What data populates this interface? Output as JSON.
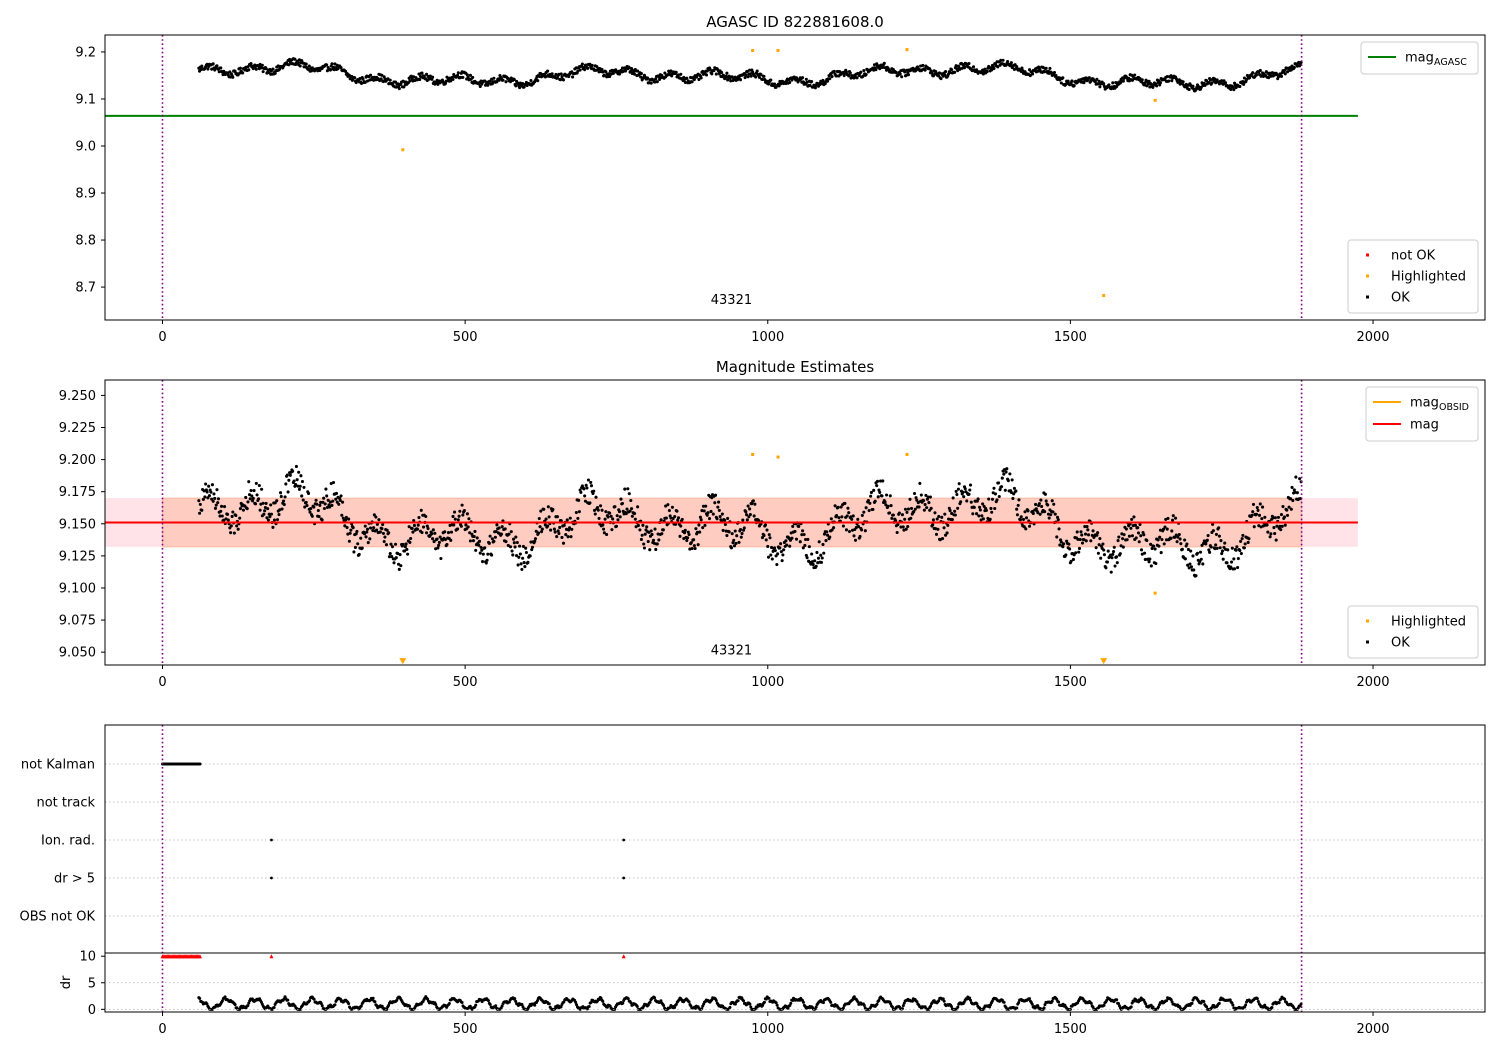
{
  "chart_data": [
    {
      "type": "scatter",
      "title": "AGASC ID 822881608.0",
      "xlim": [
        -95,
        2185
      ],
      "ylim": [
        8.63,
        9.236
      ],
      "xticks": [
        0,
        500,
        1000,
        1500,
        2000
      ],
      "yticks": [
        8.7,
        8.8,
        8.9,
        9.0,
        9.1,
        9.2
      ],
      "ytick_decimals": 1,
      "vlines": [
        0,
        1882
      ],
      "hlines": [
        {
          "name": "mag_AGASC",
          "y": 9.064,
          "x": [
            -95,
            1975
          ],
          "color": "#008000"
        }
      ],
      "band": null,
      "annotation": "43321",
      "annotation_x": 940,
      "annotation_y": 8.655,
      "series": [
        {
          "name": "OK",
          "color": "#000000",
          "kind": "curve",
          "x_range": [
            60,
            1882
          ],
          "base": 9.15,
          "amp_slow": 0.022,
          "amp_fast": 0.008,
          "noise": 0.007
        },
        {
          "name": "Highlighted",
          "color": "#ffa500",
          "kind": "points",
          "x": [
            397,
            975,
            1017,
            1230,
            1555,
            1640
          ],
          "y": [
            8.992,
            9.203,
            9.203,
            9.205,
            8.682,
            9.097
          ]
        },
        {
          "name": "not OK",
          "color": "#ff0000",
          "kind": "points",
          "x": [],
          "y": []
        }
      ],
      "legend_upper": [
        {
          "label": "mag",
          "sub": "AGASC",
          "color": "#008000"
        }
      ],
      "legend_lower": [
        "not OK",
        "Highlighted",
        "OK"
      ]
    },
    {
      "type": "scatter",
      "title": "Magnitude Estimates",
      "xlim": [
        -95,
        2185
      ],
      "ylim": [
        9.04,
        9.262
      ],
      "xticks": [
        0,
        500,
        1000,
        1500,
        2000
      ],
      "yticks": [
        9.05,
        9.075,
        9.1,
        9.125,
        9.15,
        9.175,
        9.2,
        9.225,
        9.25
      ],
      "ytick_decimals": 3,
      "vlines": [
        0,
        1882
      ],
      "hlines": [
        {
          "name": "mag",
          "y": 9.151,
          "x": [
            -95,
            1975
          ],
          "color": "#ff0000"
        }
      ],
      "band": {
        "y": [
          9.132,
          9.17
        ],
        "x": [
          -95,
          1975
        ]
      },
      "annotation": "43321",
      "annotation_x": 940,
      "annotation_y": 9.045,
      "series": [
        {
          "name": "OK",
          "color": "#000000",
          "kind": "curve",
          "x_range": [
            60,
            1882
          ],
          "base": 9.15,
          "amp_slow": 0.024,
          "amp_fast": 0.012,
          "noise": 0.01
        },
        {
          "name": "Highlighted",
          "color": "#ffa500",
          "kind": "points",
          "x": [
            975,
            1017,
            1230,
            1640
          ],
          "y": [
            9.204,
            9.202,
            9.204,
            9.096
          ]
        },
        {
          "name": "Highlighted (off scale)",
          "color": "#ffa500",
          "kind": "triangles",
          "x": [
            397,
            1555
          ],
          "y": [
            9.043,
            9.043
          ]
        }
      ],
      "legend_upper": [
        {
          "label": "mag",
          "sub": "OBSID",
          "color": "#ffa500"
        },
        {
          "label": "mag",
          "sub": "",
          "color": "#ff0000"
        }
      ],
      "legend_lower": [
        "Highlighted",
        "OK"
      ]
    },
    {
      "type": "scatter",
      "title": "",
      "xlim": [
        -95,
        2185
      ],
      "xticks": [
        0,
        500,
        1000,
        1500,
        2000
      ],
      "flag_rows": [
        "not Kalman",
        "not track",
        "Ion. rad.",
        "dr > 5",
        "OBS not OK"
      ],
      "flags": {
        "not Kalman": {
          "x_range": [
            0,
            62
          ]
        },
        "not track": {
          "x": []
        },
        "Ion. rad.": {
          "x": [
            180,
            762
          ]
        },
        "dr > 5": {
          "x": [
            180,
            762
          ]
        },
        "OBS not OK": {
          "x": []
        }
      },
      "vlines": [
        0,
        1882
      ],
      "dr_panel": {
        "ylabel": "dr",
        "yticks": [
          0,
          5,
          10
        ],
        "ylim": [
          -0.5,
          10.6
        ],
        "clipped_x": [
          180,
          762
        ],
        "clipped_range": [
          0,
          62
        ],
        "clip_value": 10,
        "x_range": [
          60,
          1882
        ]
      }
    }
  ]
}
